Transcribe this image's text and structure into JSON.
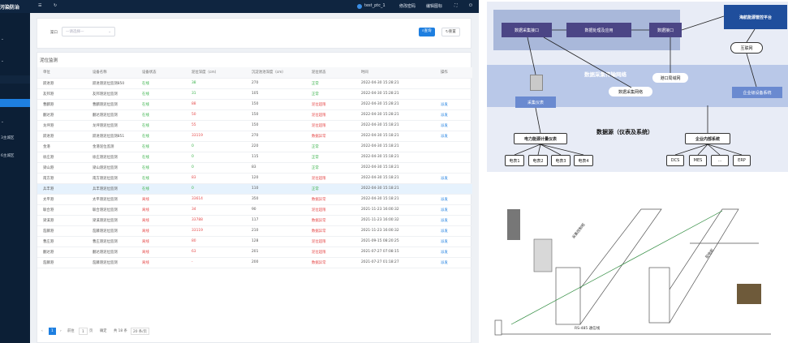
{
  "topbar": {
    "brand": "污染防治",
    "menu_icon": "☰",
    "refresh_icon": "↻",
    "user": "test_ptc_1",
    "user_menu": [
      "修改密码",
      "编辑图标"
    ],
    "fullscreen_icon": "⛶",
    "power_icon": "⏻"
  },
  "sidebar": {
    "items": [
      "",
      "",
      "",
      "",
      "",
      "",
      "",
      "",
      "",
      "",
      "",
      "3主城区",
      "6主城区",
      ""
    ]
  },
  "filter": {
    "label": "渠口",
    "placeholder": "—请选择—",
    "search_label": "查询",
    "reset_label": "重置"
  },
  "table": {
    "title": "泥位监测",
    "headers": [
      "单位",
      "设备名称",
      "设备状态",
      "泥位深度（cm）",
      "沉淀池池深度（cm）",
      "泥位状态",
      "时间",
      "操作"
    ],
    "rows": [
      [
        "跃进港",
        "跃进港泥位监测850",
        "在线",
        "38",
        "270",
        "正常",
        "2022-04-30 15:28:21",
        ""
      ],
      [
        "友邦港",
        "友邦港泥位监测",
        "在线",
        "31",
        "105",
        "正常",
        "2022-04-30 15:28:21",
        ""
      ],
      [
        "曹麟港",
        "曹麟港泥位监测",
        "在线",
        "88",
        "150",
        "泥位超限",
        "2022-04-30 15:28:21",
        "派发"
      ],
      [
        "翻达港",
        "翻达港泥位监测",
        "在线",
        "50",
        "150",
        "泥位超限",
        "2022-04-30 15:28:21",
        "派发"
      ],
      [
        "龙坪港",
        "龙坪港泥位监测",
        "在线",
        "55",
        "150",
        "泥位超限",
        "2022-04-30 15:18:21",
        "派发"
      ],
      [
        "跃进港",
        "跃进港泥位监测851",
        "在线",
        "33119",
        "270",
        "数据异常",
        "2022-04-30 15:18:21",
        "派发"
      ],
      [
        "金港",
        "金港泥位监测",
        "在线",
        "0",
        "220",
        "正常",
        "2022-04-30 15:18:21",
        ""
      ],
      [
        "徐庄港",
        "徐庄港泥位监测",
        "在线",
        "0",
        "115",
        "正常",
        "2022-04-30 15:18:21",
        ""
      ],
      [
        "梁山港",
        "梁山港泥位监测",
        "在线",
        "0",
        "83",
        "正常",
        "2022-04-30 15:18:21",
        ""
      ],
      [
        "南方港",
        "南方港泥位监测",
        "在线",
        "83",
        "120",
        "泥位超限",
        "2022-04-30 15:18:21",
        "派发"
      ],
      [
        "兵丰港",
        "兵丰港泥位监测",
        "在线",
        "0",
        "110",
        "正常",
        "2022-04-30 15:18:21",
        ""
      ],
      [
        "太平港",
        "太平港泥位监测",
        "离线",
        "33614",
        "350",
        "数据异常",
        "2022-04-30 15:18:21",
        "派发"
      ],
      [
        "联合港",
        "联合港泥位监测",
        "离线",
        "34",
        "90",
        "泥位超限",
        "2021-11-23 16:00:32",
        "派发"
      ],
      [
        "梁溪港",
        "梁溪港泥位监测",
        "离线",
        "33788",
        "117",
        "数据异常",
        "2021-11-23 16:00:32",
        "派发"
      ],
      [
        "茄藤港",
        "茄藤港泥位监测",
        "离线",
        "33119",
        "210",
        "数据异常",
        "2021-11-23 16:00:32",
        "派发"
      ],
      [
        "曹庄港",
        "曹庄港泥位监测",
        "离线",
        "80",
        "128",
        "泥位超限",
        "2021-09-15 08:20:25",
        "派发"
      ],
      [
        "翻达港",
        "翻达港泥位监测",
        "离线",
        "63",
        "201",
        "泥位超限",
        "2021-07-27 07:08:15",
        "派发"
      ],
      [
        "茄藤港",
        "茄藤港泥位监测",
        "离线",
        "-",
        "200",
        "数据异常",
        "2021-07-27 01:18:27",
        "派发"
      ]
    ]
  },
  "pagination": {
    "prev": "‹",
    "page": "1",
    "next": "›",
    "goto": "前往",
    "goto_page": "1",
    "page_unit": "页",
    "confirm": "确定",
    "total": "共 18 条",
    "page_size": "20 条/页"
  },
  "diagram": {
    "platform": "海航能源管控平台",
    "iface1": "数据采集接口",
    "proc": "数据处理及应用",
    "iface2": "数据接口",
    "network": "数据采集传输网络",
    "internet": "互联网",
    "port_net": "港口局域网",
    "collect_net": "数据采集网络",
    "device": "采集仪表",
    "enterprise_sys": "企业级设备系统",
    "meter": "电力能源计量仪表",
    "source": "数据源（仪表及系统）",
    "ent_internal": "企业内部系统",
    "meters": [
      "电表1",
      "电表2",
      "电表3",
      "电表4"
    ],
    "systems": [
      "DCS",
      "MES",
      "...",
      "ERP"
    ]
  },
  "photo": {
    "label_cabinet": "采集控制柜",
    "label_rack": "配电柜",
    "label_bus": "RS-485 通信线"
  },
  "colors": {
    "topbar": "#0f2540",
    "sidebar": "#0c1f36",
    "active": "#1e7fe0",
    "online": "#39b24a",
    "offline": "#e54b4b",
    "link": "#1e7fe0",
    "diagram_blue": "#1f4e9c",
    "diagram_purple": "#4b4585"
  }
}
